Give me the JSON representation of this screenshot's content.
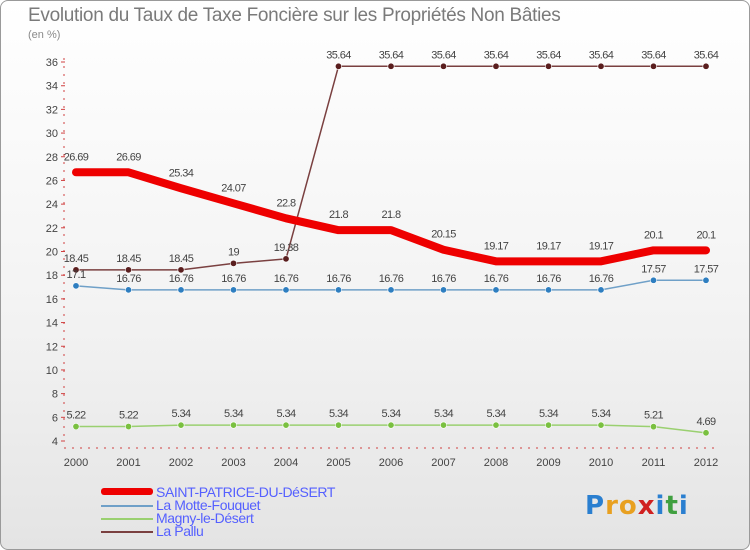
{
  "header": {
    "title": "Evolution du Taux de Taxe Foncière sur les Propriétés Non Bâties",
    "unit": "(en %)"
  },
  "logo": {
    "letters": [
      "P",
      "r",
      "o",
      "x",
      "i",
      "t",
      "i"
    ],
    "colors": [
      "#2a7fd0",
      "#e8a020",
      "#e8a020",
      "#d02020",
      "#2a7fd0",
      "#40a040",
      "#2a7fd0"
    ]
  },
  "chart_data": {
    "type": "line",
    "title": "Evolution du Taux de Taxe Foncière sur les Propriétés Non Bâties",
    "ylabel": "(en %)",
    "xlabel": "",
    "categories": [
      "2000",
      "2001",
      "2002",
      "2003",
      "2004",
      "2005",
      "2006",
      "2007",
      "2008",
      "2009",
      "2010",
      "2011",
      "2012"
    ],
    "ylim": [
      4,
      36
    ],
    "yticks": [
      4,
      6,
      8,
      10,
      12,
      14,
      16,
      18,
      20,
      22,
      24,
      26,
      28,
      30,
      32,
      34,
      36
    ],
    "grid": false,
    "legend_position": "bottom-left",
    "series": [
      {
        "name": "SAINT-PATRICE-DU-DéSERT",
        "color": "#ee0000",
        "width": 8,
        "values": [
          26.69,
          26.69,
          25.34,
          24.07,
          22.8,
          21.8,
          21.8,
          20.15,
          19.17,
          19.17,
          19.17,
          20.1,
          20.1
        ],
        "labels": [
          "26.69",
          "26.69",
          "25.34",
          "24.07",
          "22.8",
          "21.8",
          "21.8",
          "20.15",
          "19.17",
          "19.17",
          "19.17",
          "20.1",
          "20.1"
        ]
      },
      {
        "name": "La Motte-Fouquet",
        "color": "#6fa0c8",
        "marker": "#2e7ec0",
        "width": 1.5,
        "values": [
          17.1,
          16.76,
          16.76,
          16.76,
          16.76,
          16.76,
          16.76,
          16.76,
          16.76,
          16.76,
          16.76,
          17.57,
          17.57
        ],
        "labels": [
          "17.1",
          "16.76",
          "16.76",
          "16.76",
          "16.76",
          "16.76",
          "16.76",
          "16.76",
          "16.76",
          "16.76",
          "16.76",
          "17.57",
          "17.57"
        ]
      },
      {
        "name": "Magny-le-Désert",
        "color": "#9ad070",
        "marker": "#7ac040",
        "width": 1.5,
        "values": [
          5.22,
          5.22,
          5.34,
          5.34,
          5.34,
          5.34,
          5.34,
          5.34,
          5.34,
          5.34,
          5.34,
          5.21,
          4.69
        ],
        "labels": [
          "5.22",
          "5.22",
          "5.34",
          "5.34",
          "5.34",
          "5.34",
          "5.34",
          "5.34",
          "5.34",
          "5.34",
          "5.34",
          "5.21",
          "4.69"
        ]
      },
      {
        "name": "La Pallu",
        "color": "#7a4040",
        "marker": "#5a1e1e",
        "width": 1.5,
        "values": [
          18.45,
          18.45,
          18.45,
          19,
          19.38,
          35.64,
          35.64,
          35.64,
          35.64,
          35.64,
          35.64,
          35.64,
          35.64
        ],
        "labels": [
          "18.45",
          "18.45",
          "18.45",
          "19",
          "19.38",
          "35.64",
          "35.64",
          "35.64",
          "35.64",
          "35.64",
          "35.64",
          "35.64",
          "35.64"
        ]
      }
    ]
  }
}
